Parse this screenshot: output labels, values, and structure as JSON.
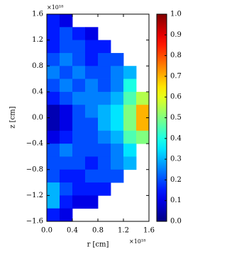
{
  "chart_data": {
    "type": "heatmap",
    "colormap": "jet",
    "x_label": "r [cm]",
    "y_label": "z [cm]",
    "x_offset_label": "×10¹⁸",
    "y_offset_label": "×10¹⁸",
    "x": [
      0.1,
      0.3,
      0.5,
      0.7,
      0.9,
      1.1,
      1.3,
      1.5
    ],
    "y": [
      1.5,
      1.3,
      1.1,
      0.9,
      0.7,
      0.5,
      0.3,
      0.1,
      -0.1,
      -0.3,
      -0.5,
      -0.7,
      -0.9,
      -1.1,
      -1.3,
      -1.5
    ],
    "values": [
      [
        0.15,
        0.1,
        null,
        null,
        null,
        null,
        null,
        null
      ],
      [
        0.15,
        0.2,
        0.15,
        0.1,
        null,
        null,
        null,
        null
      ],
      [
        0.15,
        0.2,
        0.2,
        0.15,
        0.15,
        null,
        null,
        null
      ],
      [
        0.2,
        0.25,
        0.2,
        0.15,
        0.2,
        0.2,
        null,
        null
      ],
      [
        0.25,
        0.2,
        0.25,
        0.2,
        0.2,
        0.25,
        0.3,
        null
      ],
      [
        0.2,
        0.25,
        0.2,
        0.25,
        0.2,
        0.25,
        0.4,
        null
      ],
      [
        0.15,
        0.2,
        0.25,
        0.25,
        0.25,
        0.3,
        0.45,
        0.55
      ],
      [
        0.05,
        0.1,
        0.2,
        0.25,
        0.3,
        0.35,
        0.5,
        0.7
      ],
      [
        0.05,
        0.1,
        0.2,
        0.2,
        0.3,
        0.35,
        0.5,
        0.7
      ],
      [
        0.1,
        0.15,
        0.2,
        0.2,
        0.25,
        0.3,
        0.45,
        0.5
      ],
      [
        0.2,
        0.25,
        0.2,
        0.2,
        0.2,
        0.25,
        0.35,
        null
      ],
      [
        0.2,
        0.2,
        0.2,
        0.15,
        0.2,
        0.25,
        0.3,
        null
      ],
      [
        0.2,
        0.15,
        0.15,
        0.2,
        0.2,
        0.2,
        null,
        null
      ],
      [
        0.3,
        0.2,
        0.15,
        0.15,
        0.15,
        null,
        null,
        null
      ],
      [
        0.3,
        0.15,
        0.1,
        0.1,
        null,
        null,
        null,
        null
      ],
      [
        0.15,
        0.1,
        null,
        null,
        null,
        null,
        null,
        null
      ]
    ],
    "xlim": [
      0,
      1.6
    ],
    "xticks": [
      {
        "value": 0,
        "label": "0.0"
      },
      {
        "value": 0.4,
        "label": "0.4"
      },
      {
        "value": 0.8,
        "label": "0.8"
      },
      {
        "value": 1.2,
        "label": "1.2"
      },
      {
        "value": 1.6,
        "label": "1.6"
      }
    ],
    "ylim": [
      -1.6,
      1.6
    ],
    "yticks": [
      {
        "value": -1.6,
        "label": "−1.6"
      },
      {
        "value": -1.2,
        "label": "−1.2"
      },
      {
        "value": -0.8,
        "label": "−0.8"
      },
      {
        "value": -0.4,
        "label": "−0.4"
      },
      {
        "value": 0,
        "label": "0.0"
      },
      {
        "value": 0.4,
        "label": "0.4"
      },
      {
        "value": 0.8,
        "label": "0.8"
      },
      {
        "value": 1.2,
        "label": "1.2"
      },
      {
        "value": 1.6,
        "label": "1.6"
      }
    ],
    "clim": [
      0,
      1
    ],
    "cticks": [
      {
        "value": 0,
        "label": "0.0"
      },
      0.1,
      0.2,
      0.3,
      0.4,
      0.5,
      0.6,
      0.7,
      0.8,
      0.9,
      {
        "value": 1,
        "label": "1.0"
      }
    ]
  }
}
